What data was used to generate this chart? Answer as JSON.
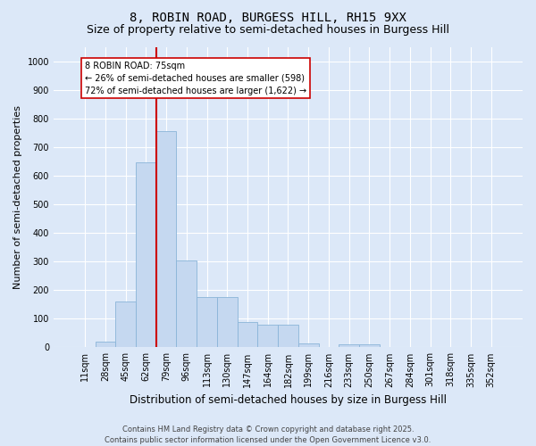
{
  "title1": "8, ROBIN ROAD, BURGESS HILL, RH15 9XX",
  "title2": "Size of property relative to semi-detached houses in Burgess Hill",
  "xlabel": "Distribution of semi-detached houses by size in Burgess Hill",
  "ylabel": "Number of semi-detached properties",
  "categories": [
    "11sqm",
    "28sqm",
    "45sqm",
    "62sqm",
    "79sqm",
    "96sqm",
    "113sqm",
    "130sqm",
    "147sqm",
    "164sqm",
    "182sqm",
    "199sqm",
    "216sqm",
    "233sqm",
    "250sqm",
    "267sqm",
    "284sqm",
    "301sqm",
    "318sqm",
    "335sqm",
    "352sqm"
  ],
  "values": [
    0,
    20,
    160,
    645,
    755,
    305,
    175,
    175,
    90,
    80,
    80,
    15,
    0,
    10,
    10,
    0,
    0,
    0,
    0,
    2,
    2
  ],
  "bar_color": "#c5d8f0",
  "bar_edge_color": "#8ab4d8",
  "vline_x_index": 4,
  "vline_color": "#cc0000",
  "annotation_text": "8 ROBIN ROAD: 75sqm\n← 26% of semi-detached houses are smaller (598)\n72% of semi-detached houses are larger (1,622) →",
  "annotation_box_color": "#ffffff",
  "annotation_box_edge": "#cc0000",
  "ylim": [
    0,
    1050
  ],
  "yticks": [
    0,
    100,
    200,
    300,
    400,
    500,
    600,
    700,
    800,
    900,
    1000
  ],
  "footer1": "Contains HM Land Registry data © Crown copyright and database right 2025.",
  "footer2": "Contains public sector information licensed under the Open Government Licence v3.0.",
  "bg_color": "#dce8f8",
  "plot_bg_color": "#dce8f8",
  "title_fontsize": 10,
  "subtitle_fontsize": 9,
  "ylabel_fontsize": 8,
  "xlabel_fontsize": 8.5,
  "tick_fontsize": 7,
  "footer_fontsize": 6
}
